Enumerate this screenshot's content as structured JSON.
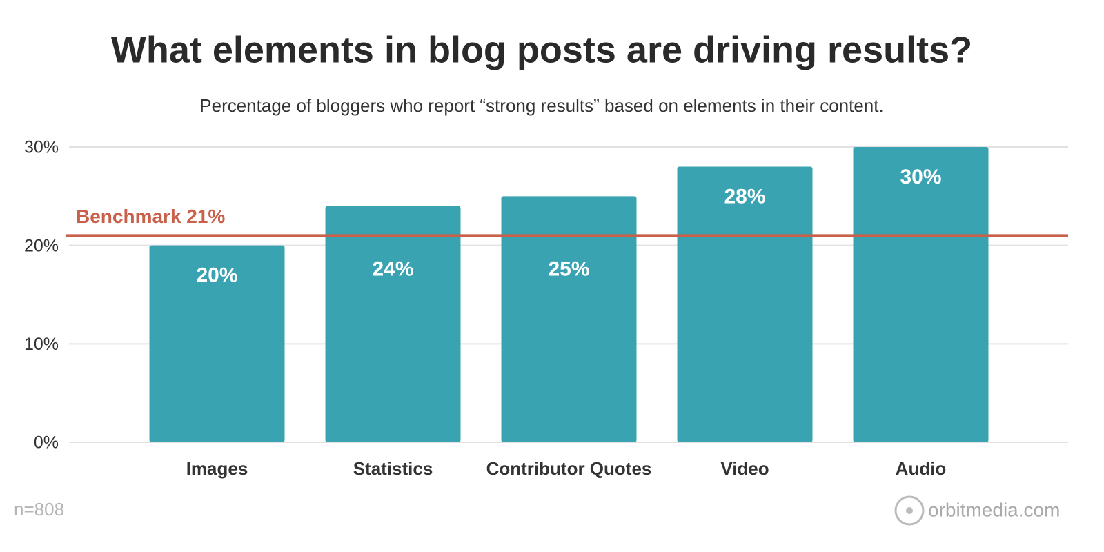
{
  "chart_data": {
    "type": "bar",
    "title": "What elements in blog posts are driving results?",
    "subtitle": "Percentage of bloggers who report “strong results” based on elements in their content.",
    "categories": [
      "Images",
      "Statistics",
      "Contributor Quotes",
      "Video",
      "Audio"
    ],
    "values": [
      20,
      24,
      25,
      28,
      30
    ],
    "value_labels": [
      "20%",
      "24%",
      "25%",
      "28%",
      "30%"
    ],
    "color": "#3aa3b2",
    "ylim": [
      0,
      30
    ],
    "yticks": [
      {
        "value": 0,
        "label": "0%"
      },
      {
        "value": 10,
        "label": "10%"
      },
      {
        "value": 20,
        "label": "20%"
      },
      {
        "value": 30,
        "label": "30%"
      }
    ],
    "grid": true,
    "benchmark": {
      "value": 21,
      "label": "Benchmark 21%",
      "color": "#c8604a"
    },
    "footnote": "n=808",
    "source": "orbitmedia.com"
  }
}
